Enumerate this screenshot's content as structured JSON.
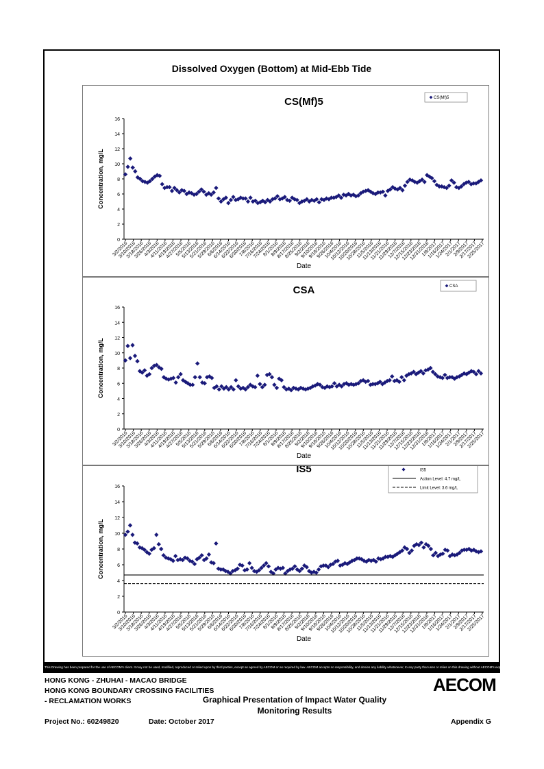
{
  "page": {
    "title": "Dissolved Oxygen (Bottom) at Mid-Ebb Tide",
    "disclaimer": "This Drawing has been prepared for the use of AECOM's client. It may not be used, modified, reproduced or relied upon by third parties, except as agreed by AECOM or as required by law. AECOM accepts no responsibility, and denies any liability whatsoever, to any party that uses or relies on this drawing without AECOM's express written consent.",
    "footer": {
      "line1": "HONG KONG - ZHUHAI - MACAO BRIDGE",
      "line2": "HONG KONG BOUNDARY CROSSING FACILITIES",
      "line3": "- RECLAMATION WORKS",
      "center_title": "Graphical Presentation of Impact Water Quality",
      "center_title2": "Monitoring Results",
      "project": "Project No.: 60249820",
      "date": "Date: October 2017",
      "appendix": "Appendix G",
      "logo": "AECOM",
      "logo_color": "#000000"
    }
  },
  "chart_data": [
    {
      "type": "scatter",
      "title": "CS(Mf)5",
      "xlabel": "Date",
      "ylabel": "Concentration, mg/L",
      "ylim": [
        0,
        16
      ],
      "yticks": [
        0,
        2,
        4,
        6,
        8,
        10,
        12,
        14,
        16
      ],
      "grid": false,
      "legend": "top-right",
      "marker_color": "#1a1a7a",
      "xticks": [
        "3/2/2016",
        "3/10/2016",
        "3/18/2016",
        "3/26/2016",
        "4/3/2016",
        "4/11/2016",
        "4/19/2016",
        "4/27/2016",
        "5/5/2016",
        "5/13/2016",
        "5/21/2016",
        "5/29/2016",
        "6/6/2016",
        "6/14/2016",
        "6/22/2016",
        "6/30/2016",
        "7/8/2016",
        "7/16/2016",
        "7/24/2016",
        "8/1/2016",
        "8/9/2016",
        "8/17/2016",
        "8/25/2016",
        "9/2/2016",
        "9/10/2016",
        "9/18/2016",
        "9/26/2016",
        "10/4/2016",
        "10/12/2016",
        "10/20/2016",
        "10/28/2016",
        "11/5/2016",
        "11/13/2016",
        "11/21/2016",
        "11/29/2016",
        "12/7/2016",
        "12/15/2016",
        "12/23/2016",
        "12/31/2016",
        "1/8/2017",
        "1/16/2017",
        "1/24/2017",
        "2/1/2017",
        "2/9/2017",
        "2/17/2017",
        "2/25/2017"
      ],
      "series": [
        {
          "name": "CS(Mf)5",
          "marker": "diamond",
          "values": [
            8.6,
            9.6,
            10.7,
            9.5,
            9.0,
            8.2,
            8.0,
            7.7,
            7.6,
            7.5,
            7.7,
            8.0,
            8.3,
            8.5,
            8.4,
            7.3,
            6.8,
            6.9,
            6.9,
            6.4,
            6.8,
            6.5,
            6.2,
            6.5,
            6.4,
            6.0,
            6.2,
            6.1,
            5.9,
            6.0,
            6.3,
            6.6,
            6.3,
            5.9,
            6.1,
            5.9,
            6.2,
            6.8,
            5.4,
            5.0,
            5.3,
            5.5,
            4.8,
            5.2,
            5.6,
            5.2,
            5.3,
            5.5,
            5.4,
            5.4,
            5.0,
            5.5,
            5.0,
            5.1,
            4.8,
            4.9,
            5.1,
            4.9,
            5.2,
            5.0,
            5.3,
            5.4,
            5.7,
            5.3,
            5.4,
            5.6,
            5.2,
            5.1,
            5.5,
            5.3,
            5.2,
            4.8,
            5.0,
            5.1,
            5.3,
            5.0,
            5.2,
            5.1,
            5.3,
            4.9,
            5.3,
            5.2,
            5.4,
            5.3,
            5.5,
            5.5,
            5.6,
            5.8,
            5.5,
            5.9,
            5.8,
            6.0,
            5.8,
            5.9,
            5.7,
            5.8,
            6.1,
            6.3,
            6.4,
            6.5,
            6.3,
            6.1,
            6.0,
            6.2,
            6.2,
            6.3,
            5.8,
            6.4,
            6.6,
            6.9,
            6.7,
            6.6,
            6.8,
            6.5,
            7.1,
            7.6,
            7.9,
            7.8,
            7.6,
            7.5,
            7.7,
            7.9,
            7.6,
            8.5,
            8.3,
            8.1,
            7.7,
            7.2,
            7.0,
            7.0,
            6.9,
            6.8,
            7.1,
            7.8,
            7.5,
            6.9,
            6.8,
            7.0,
            7.3,
            7.5,
            7.6,
            7.3,
            7.4,
            7.4,
            7.6,
            7.8
          ]
        }
      ]
    },
    {
      "type": "scatter",
      "title": "CSA",
      "xlabel": "Date",
      "ylabel": "Concentration, mg/L",
      "ylim": [
        0,
        16
      ],
      "yticks": [
        0,
        2,
        4,
        6,
        8,
        10,
        12,
        14,
        16
      ],
      "grid": false,
      "legend": "top-right",
      "marker_color": "#1a1a7a",
      "xticks": [
        "3/2/2016",
        "3/10/2016",
        "3/18/2016",
        "3/26/2016",
        "4/3/2016",
        "4/11/2016",
        "4/19/2016",
        "4/27/2016",
        "5/5/2016",
        "5/13/2016",
        "5/21/2016",
        "5/29/2016",
        "6/6/2016",
        "6/14/2016",
        "6/22/2016",
        "6/30/2016",
        "7/8/2016",
        "7/16/2016",
        "7/24/2016",
        "8/1/2016",
        "8/9/2016",
        "8/17/2016",
        "8/25/2016",
        "9/2/2016",
        "9/10/2016",
        "9/18/2016",
        "9/26/2016",
        "10/4/2016",
        "10/12/2016",
        "10/20/2016",
        "10/28/2016",
        "11/5/2016",
        "11/13/2016",
        "11/21/2016",
        "11/29/2016",
        "12/7/2016",
        "12/15/2016",
        "12/23/2016",
        "12/31/2016",
        "1/8/2017",
        "1/16/2017",
        "1/24/2017",
        "2/1/2017",
        "2/9/2017",
        "2/17/2017",
        "2/25/2017"
      ],
      "series": [
        {
          "name": "CSA",
          "marker": "diamond",
          "values": [
            9.0,
            10.9,
            9.3,
            11.0,
            9.6,
            8.9,
            7.6,
            7.4,
            7.7,
            7.0,
            7.2,
            8.0,
            8.3,
            8.4,
            8.1,
            7.9,
            6.8,
            6.6,
            6.5,
            6.6,
            6.7,
            6.1,
            6.8,
            7.2,
            6.4,
            6.2,
            6.0,
            5.8,
            5.8,
            6.8,
            8.6,
            6.8,
            6.1,
            6.0,
            6.8,
            6.9,
            6.7,
            5.4,
            5.6,
            5.2,
            5.6,
            5.3,
            5.5,
            5.2,
            5.5,
            5.2,
            6.4,
            5.6,
            5.3,
            5.4,
            5.2,
            5.5,
            5.8,
            5.6,
            5.5,
            7.0,
            5.9,
            5.5,
            5.8,
            7.1,
            7.2,
            6.8,
            5.8,
            5.4,
            6.6,
            6.4,
            5.5,
            5.2,
            5.3,
            5.1,
            5.4,
            5.3,
            5.2,
            5.4,
            5.3,
            5.2,
            5.3,
            5.4,
            5.6,
            5.7,
            5.9,
            5.8,
            5.5,
            5.4,
            5.6,
            5.5,
            5.6,
            6.0,
            5.6,
            5.8,
            5.6,
            5.9,
            6.0,
            5.8,
            5.9,
            5.8,
            5.9,
            6.0,
            6.3,
            6.4,
            6.2,
            6.3,
            5.8,
            5.9,
            5.9,
            6.0,
            6.2,
            5.9,
            6.1,
            6.3,
            6.4,
            6.9,
            6.3,
            6.4,
            6.2,
            6.8,
            6.4,
            7.0,
            7.2,
            7.3,
            7.5,
            7.2,
            7.4,
            7.6,
            7.3,
            7.7,
            7.8,
            8.0,
            7.5,
            7.2,
            6.9,
            6.8,
            6.7,
            7.1,
            6.7,
            6.8,
            6.8,
            6.6,
            6.8,
            6.9,
            7.1,
            7.3,
            7.2,
            7.4,
            7.6,
            7.5,
            7.2,
            7.6,
            7.3
          ]
        }
      ]
    },
    {
      "type": "scatter",
      "title": "IS5",
      "xlabel": "Date",
      "ylabel": "Concentration, mg/L",
      "ylim": [
        0,
        16
      ],
      "yticks": [
        0,
        2,
        4,
        6,
        8,
        10,
        12,
        14,
        16
      ],
      "grid": false,
      "legend": "top-right",
      "marker_color": "#1a1a7a",
      "xticks": [
        "3/2/2016",
        "3/10/2016",
        "3/18/2016",
        "3/26/2016",
        "4/3/2016",
        "4/11/2016",
        "4/19/2016",
        "4/27/2016",
        "5/5/2016",
        "5/13/2016",
        "5/21/2016",
        "5/29/2016",
        "6/6/2016",
        "6/14/2016",
        "6/22/2016",
        "6/30/2016",
        "7/8/2016",
        "7/16/2016",
        "7/24/2016",
        "8/1/2016",
        "8/9/2016",
        "8/17/2016",
        "8/25/2016",
        "9/2/2016",
        "9/10/2016",
        "9/18/2016",
        "9/26/2016",
        "10/4/2016",
        "10/12/2016",
        "10/20/2016",
        "10/28/2016",
        "11/5/2016",
        "11/13/2016",
        "11/21/2016",
        "11/29/2016",
        "12/7/2016",
        "12/15/2016",
        "12/23/2016",
        "12/31/2016",
        "1/8/2017",
        "1/16/2017",
        "1/24/2017",
        "2/1/2017",
        "2/9/2017",
        "2/17/2017",
        "2/25/2017"
      ],
      "series": [
        {
          "name": "IS5",
          "marker": "diamond",
          "values": [
            9.8,
            10.2,
            11.0,
            9.8,
            8.8,
            8.7,
            8.2,
            8.1,
            7.9,
            7.6,
            7.4,
            7.9,
            8.1,
            9.8,
            8.6,
            8.0,
            7.2,
            6.9,
            6.8,
            6.7,
            6.5,
            7.1,
            6.6,
            6.7,
            6.6,
            6.9,
            6.8,
            6.5,
            6.4,
            6.1,
            6.7,
            6.9,
            7.2,
            6.6,
            6.8,
            7.3,
            6.3,
            6.2,
            8.7,
            5.5,
            5.4,
            5.4,
            5.2,
            5.1,
            4.9,
            5.2,
            5.3,
            5.5,
            6.0,
            5.9,
            5.3,
            5.4,
            6.2,
            5.6,
            5.2,
            5.1,
            5.3,
            5.6,
            5.9,
            6.2,
            5.8,
            5.1,
            4.9,
            5.4,
            5.6,
            5.5,
            5.6,
            4.9,
            5.2,
            5.4,
            5.5,
            5.8,
            5.4,
            5.2,
            5.5,
            5.9,
            5.7,
            5.2,
            5.0,
            5.1,
            5.0,
            5.4,
            5.8,
            5.9,
            5.9,
            5.7,
            6.0,
            6.1,
            6.4,
            6.5,
            5.9,
            6.0,
            6.2,
            6.1,
            6.3,
            6.5,
            6.6,
            6.8,
            6.8,
            6.7,
            6.5,
            6.4,
            6.6,
            6.5,
            6.6,
            6.4,
            6.8,
            6.7,
            6.8,
            7.0,
            7.0,
            7.1,
            7.0,
            7.2,
            7.4,
            7.6,
            7.8,
            8.2,
            8.0,
            7.5,
            7.8,
            8.4,
            8.6,
            8.5,
            8.8,
            8.2,
            8.6,
            8.4,
            8.0,
            7.2,
            7.5,
            7.1,
            7.3,
            7.4,
            7.9,
            7.8,
            7.1,
            7.3,
            7.2,
            7.3,
            7.5,
            7.8,
            7.9,
            7.9,
            8.0,
            7.8,
            7.9,
            7.7,
            7.6,
            7.7
          ]
        },
        {
          "name": "Action Level: 4.7 mg/L",
          "type": "hline",
          "value": 4.7,
          "style": "solid"
        },
        {
          "name": "Limit Level: 3.6 mg/L",
          "type": "hline",
          "value": 3.6,
          "style": "dashed"
        }
      ]
    }
  ]
}
